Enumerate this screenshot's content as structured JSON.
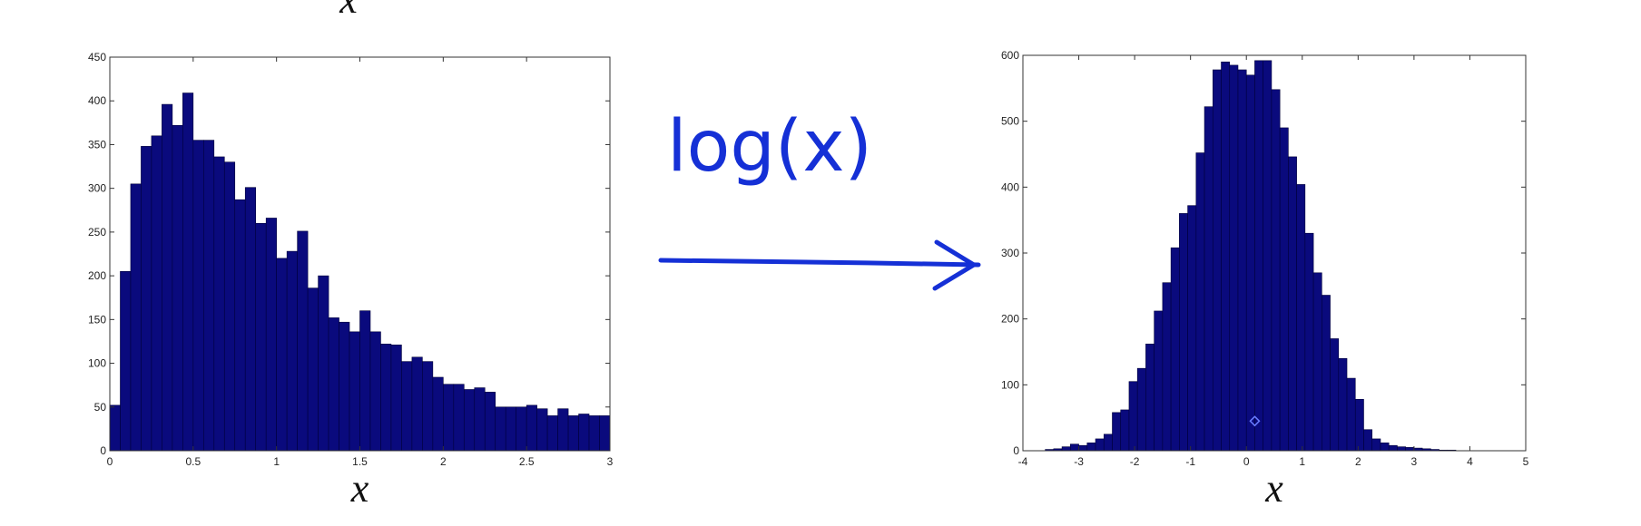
{
  "top_fragment": "x",
  "annotation": {
    "transform_label": "log(x)",
    "arrow_color": "#1530d6"
  },
  "colors": {
    "bar_fill": "#0a0a7d",
    "bar_edge": "#00003a",
    "marker": "#6a7dff"
  },
  "chart_data": [
    {
      "type": "bar",
      "xlabel": "x",
      "ylabel": "",
      "xlim": [
        0,
        3
      ],
      "ylim": [
        0,
        450
      ],
      "x_ticks": [
        "0",
        "0.5",
        "1",
        "1.5",
        "2",
        "2.5",
        "3"
      ],
      "y_ticks": [
        "0",
        "50",
        "100",
        "150",
        "200",
        "250",
        "300",
        "350",
        "400",
        "450"
      ],
      "bin_start": 0.0,
      "bin_width": 0.0625,
      "values": [
        52,
        205,
        305,
        348,
        360,
        396,
        372,
        409,
        355,
        355,
        336,
        330,
        287,
        301,
        260,
        266,
        220,
        228,
        251,
        186,
        200,
        152,
        147,
        136,
        160,
        136,
        122,
        121,
        102,
        107,
        102,
        84,
        76,
        76,
        70,
        72,
        67,
        50,
        50,
        50,
        52,
        48,
        40,
        48,
        40,
        42,
        40,
        40
      ],
      "grid": false
    },
    {
      "type": "bar",
      "xlabel": "x",
      "ylabel": "",
      "xlim": [
        -4,
        5
      ],
      "ylim": [
        0,
        600
      ],
      "x_ticks": [
        "-4",
        "-3",
        "-2",
        "-1",
        "0",
        "1",
        "2",
        "3",
        "4",
        "5"
      ],
      "y_ticks": [
        "0",
        "100",
        "200",
        "300",
        "400",
        "500",
        "600"
      ],
      "bin_start": -3.6,
      "bin_width": 0.15,
      "values": [
        2,
        3,
        6,
        10,
        8,
        12,
        18,
        25,
        58,
        62,
        105,
        125,
        162,
        212,
        255,
        308,
        360,
        372,
        452,
        522,
        578,
        590,
        585,
        578,
        570,
        592,
        592,
        548,
        490,
        446,
        404,
        330,
        270,
        236,
        170,
        140,
        110,
        78,
        32,
        18,
        12,
        8,
        6,
        5,
        4,
        3,
        2,
        1,
        1
      ],
      "marker": {
        "x": 0.15,
        "y": 45,
        "shape": "diamond"
      },
      "grid": false
    }
  ]
}
